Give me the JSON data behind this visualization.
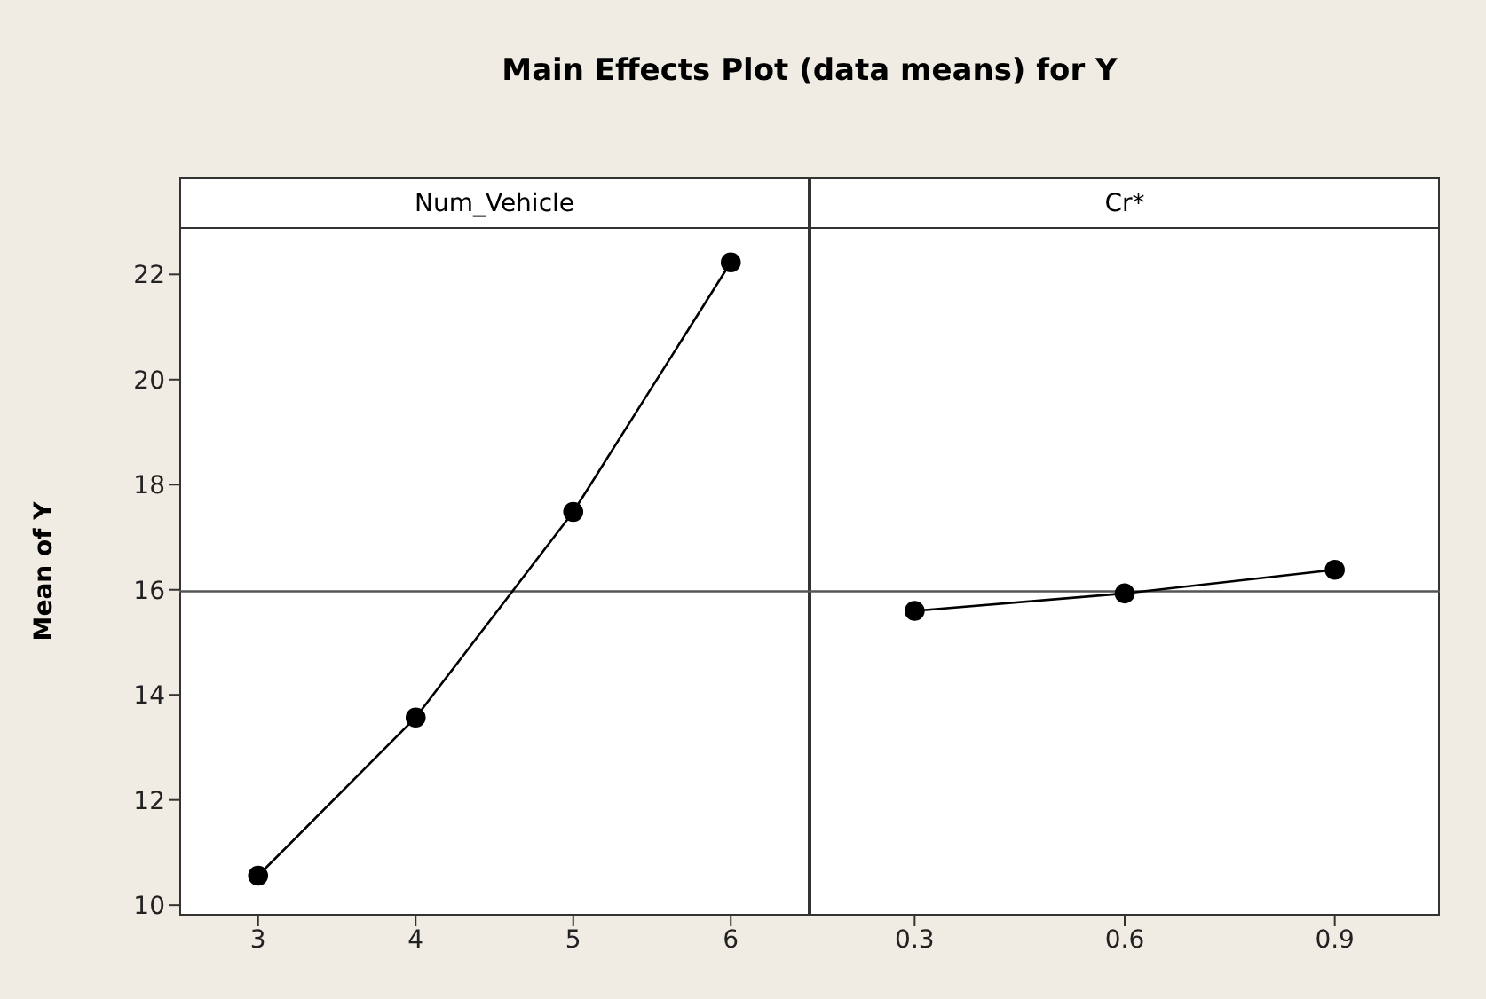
{
  "chart_data": [
    {
      "type": "line",
      "title": "Main Effects Plot (data means) for Y",
      "subtitle": "Num_Vehicle",
      "ylabel": "Mean of Y",
      "categories": [
        "3",
        "4",
        "5",
        "6"
      ],
      "series": [
        {
          "color": "#000000",
          "values": [
            10.56,
            13.57,
            17.48,
            22.23
          ]
        }
      ],
      "ylim": [
        9.8,
        22.9
      ],
      "yticks": [
        10,
        12,
        14,
        16,
        18,
        20,
        22
      ],
      "ref_lines": [
        {
          "axis": "y",
          "value": 15.97,
          "color": "#555555"
        }
      ],
      "marker": "circle",
      "grid": false,
      "legend": false
    },
    {
      "type": "line",
      "subtitle": "Cr*",
      "categories": [
        "0.3",
        "0.6",
        "0.9"
      ],
      "series": [
        {
          "color": "#000000",
          "values": [
            15.6,
            15.93,
            16.38
          ]
        }
      ],
      "ylim": [
        9.8,
        22.9
      ],
      "yticks": [
        10,
        12,
        14,
        16,
        18,
        20,
        22
      ],
      "ref_lines": [
        {
          "axis": "y",
          "value": 15.97,
          "color": "#555555"
        }
      ],
      "marker": "circle",
      "grid": false,
      "legend": false,
      "tick_labels": "x"
    }
  ]
}
